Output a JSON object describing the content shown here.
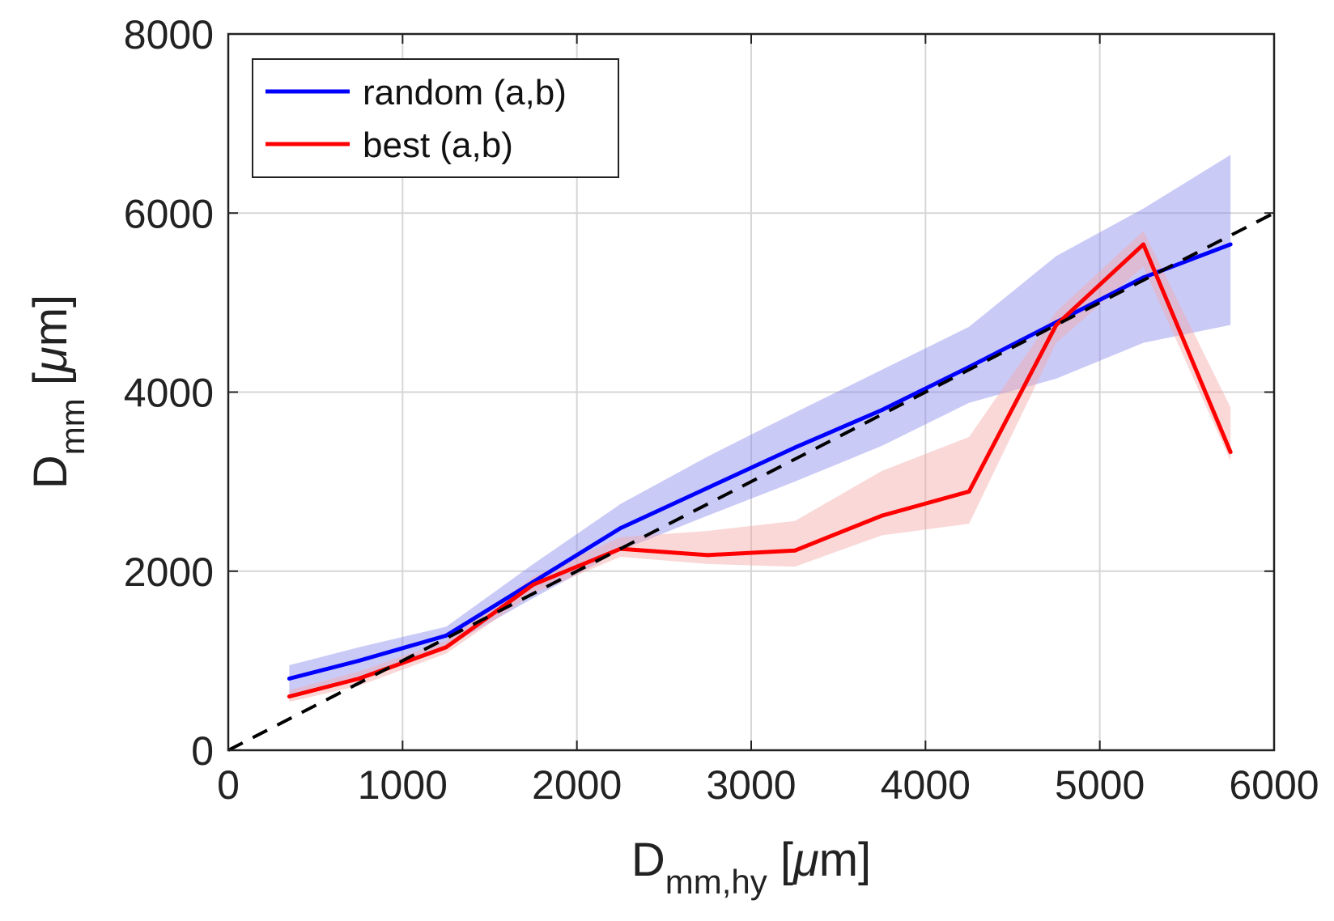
{
  "chart_data": {
    "type": "line",
    "title": "",
    "xlabel": {
      "main": "D",
      "sub": "mm,hy",
      "unit_prefix": " [",
      "mu": "μ",
      "unit_suffix": "m]"
    },
    "ylabel": {
      "main": "D",
      "sub": "mm",
      "unit_prefix": " [",
      "mu": "μ",
      "unit_suffix": "m]"
    },
    "xlim": [
      0,
      6000
    ],
    "ylim": [
      0,
      8000
    ],
    "x_ticks": [
      "0",
      "1000",
      "2000",
      "3000",
      "4000",
      "5000",
      "6000"
    ],
    "y_ticks": [
      "0",
      "2000",
      "4000",
      "6000",
      "8000"
    ],
    "grid": true,
    "legend_position": "top-left",
    "x": [
      350,
      750,
      1250,
      1750,
      2250,
      2750,
      3250,
      3750,
      4250,
      4750,
      5250,
      5750
    ],
    "series": [
      {
        "name": "random (a,b)",
        "color": "#0000ff",
        "band_color": "#8a8aee",
        "values": [
          800,
          1000,
          1280,
          1880,
          2480,
          2930,
          3380,
          3800,
          4280,
          4780,
          5280,
          5650
        ],
        "lower": [
          620,
          780,
          1150,
          1700,
          2230,
          2620,
          3000,
          3400,
          3880,
          4150,
          4550,
          4750
        ],
        "upper": [
          950,
          1150,
          1380,
          2080,
          2750,
          3280,
          3770,
          4250,
          4730,
          5520,
          6050,
          6650
        ]
      },
      {
        "name": "best (a,b)",
        "color": "#ff0000",
        "band_color": "#f4a9a9",
        "values": [
          600,
          800,
          1150,
          1850,
          2250,
          2180,
          2230,
          2620,
          2890,
          4750,
          5650,
          3330
        ],
        "lower": [
          540,
          720,
          1080,
          1750,
          2160,
          2080,
          2050,
          2400,
          2530,
          4550,
          5400,
          3230
        ],
        "upper": [
          670,
          880,
          1220,
          1940,
          2380,
          2450,
          2560,
          3120,
          3500,
          4900,
          5800,
          3830
        ]
      }
    ],
    "reference_line": {
      "type": "y=x",
      "style": "dashed",
      "color": "#000000"
    }
  }
}
